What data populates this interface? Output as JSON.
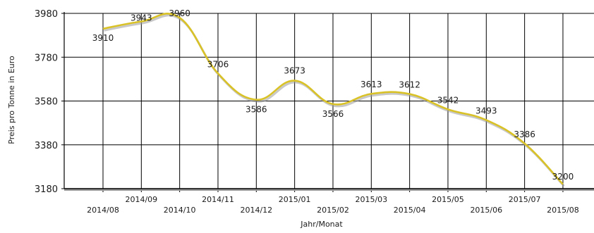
{
  "chart_data": {
    "type": "line",
    "title": "",
    "xlabel": "Jahr/Monat",
    "ylabel": "Preis pro Tonne in Euro",
    "categories": [
      "2014/08",
      "2014/09",
      "2014/10",
      "2014/11",
      "2014/12",
      "2015/01",
      "2015/02",
      "2015/03",
      "2015/04",
      "2015/05",
      "2015/06",
      "2015/07",
      "2015/08"
    ],
    "values": [
      3910,
      3943,
      3960,
      3706,
      3586,
      3673,
      3566,
      3613,
      3612,
      3542,
      3493,
      3386,
      3200
    ],
    "data_labels": [
      "3910",
      "3943",
      "3960",
      "3706",
      "3586",
      "3673",
      "3566",
      "3613",
      "3612",
      "3542",
      "3493",
      "3386",
      "3200"
    ],
    "yticks": [
      3180,
      3380,
      3580,
      3780,
      3980
    ],
    "ytick_labels": [
      "3180",
      "3380",
      "3580",
      "3780",
      "3980"
    ],
    "ylim": [
      3180,
      3980
    ],
    "grid": true,
    "legend": "none",
    "line_color": "#d9c227",
    "line_shadow_color": "#9a9a9a",
    "grid_color": "#000000"
  }
}
